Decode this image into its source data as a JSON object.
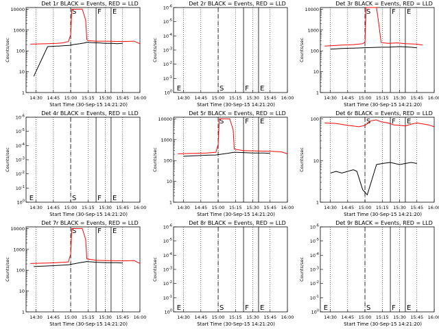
{
  "chart_data": [
    {
      "type": "line",
      "title": "Det 1r BLACK = Events, RED = LLD",
      "ylabel": "Counts/sec",
      "xlabel": "Start Time (30-Sep-15 14:21:20)",
      "x_ticks": [
        "14:30",
        "14:45",
        "15:00",
        "15:15",
        "15:30",
        "15:45",
        "16:00"
      ],
      "xlim": [
        "14:21:20",
        "16:00"
      ],
      "y_ticks": [
        "1",
        "10",
        "100",
        "1000",
        "10000"
      ],
      "ylim": [
        1,
        12000
      ],
      "yscale": "log",
      "markers": [
        {
          "label": "S",
          "x": "15:00"
        },
        {
          "label": "F",
          "x": "15:22"
        },
        {
          "label": "E",
          "x": "15:35"
        }
      ],
      "series": [
        {
          "color": "#ff0000",
          "x": [
            "14:25",
            "14:40",
            "14:48",
            "14:53",
            "14:58",
            "15:00",
            "15:01",
            "15:10",
            "15:13",
            "15:14",
            "15:15",
            "15:22",
            "15:30",
            "15:45",
            "15:55",
            "16:00"
          ],
          "y": [
            210,
            220,
            230,
            240,
            280,
            600,
            10000,
            10000,
            3000,
            350,
            310,
            290,
            290,
            280,
            290,
            220
          ]
        },
        {
          "color": "#000000",
          "x": [
            "14:28",
            "14:40",
            "14:48",
            "14:50",
            "14:53",
            "14:57",
            "15:00",
            "15:02",
            "15:08",
            "15:12",
            "15:14",
            "15:18",
            "15:25",
            "15:30",
            "15:36",
            "15:40",
            "15:45"
          ],
          "y": [
            6,
            160,
            170,
            170,
            175,
            180,
            185,
            200,
            220,
            240,
            260,
            250,
            240,
            230,
            230,
            220,
            230
          ]
        }
      ]
    },
    {
      "type": "line",
      "title": "Det 2r BLACK = Events, RED = LLD",
      "ylabel": "Counts/sec",
      "xlabel": "Start Time (30-Sep-15 14:21:20)",
      "x_ticks": [
        "14:30",
        "14:45",
        "15:00",
        "15:15",
        "15:30",
        "15:45",
        "16:00"
      ],
      "xlim": [
        "14:21:20",
        "16:00"
      ],
      "y_ticks": [
        "10^0",
        "10^-1",
        "10^-2",
        "10^-3",
        "10^-4",
        "10^-5",
        "10^-6"
      ],
      "yscale": "log",
      "markers": [
        {
          "label": "E",
          "x": "14:23"
        },
        {
          "label": "S",
          "x": "15:00"
        },
        {
          "label": "F",
          "x": "15:22"
        },
        {
          "label": "E",
          "x": "15:35"
        }
      ],
      "series": []
    },
    {
      "type": "line",
      "title": "Det 3r BLACK = Events, RED = LLD",
      "ylabel": "Counts/sec",
      "xlabel": "Start Time (30-Sep-15 14:21:20)",
      "x_ticks": [
        "14:30",
        "14:45",
        "15:00",
        "15:15",
        "15:30",
        "15:45",
        "16:00"
      ],
      "xlim": [
        "14:21:20",
        "16:00"
      ],
      "y_ticks": [
        "1",
        "10",
        "100",
        "1000",
        "10000"
      ],
      "ylim": [
        1,
        12000
      ],
      "yscale": "log",
      "markers": [
        {
          "label": "S",
          "x": "15:00"
        },
        {
          "label": "F",
          "x": "15:22"
        },
        {
          "label": "E",
          "x": "15:35"
        }
      ],
      "series": [
        {
          "color": "#ff0000",
          "x": [
            "14:25",
            "14:40",
            "14:50",
            "14:58",
            "15:00",
            "15:01",
            "15:10",
            "15:12",
            "15:14",
            "15:20",
            "15:28",
            "15:35",
            "15:45",
            "15:50"
          ],
          "y": [
            170,
            190,
            200,
            220,
            260,
            12000,
            12000,
            2000,
            250,
            230,
            240,
            220,
            210,
            190
          ]
        },
        {
          "color": "#000000",
          "x": [
            "14:30",
            "14:40",
            "14:50",
            "14:58",
            "15:14",
            "15:20",
            "15:30",
            "15:40",
            "15:45"
          ],
          "y": [
            120,
            130,
            135,
            140,
            150,
            150,
            160,
            150,
            140
          ]
        }
      ]
    },
    {
      "type": "line",
      "title": "Det 4r BLACK = Events, RED = LLD",
      "ylabel": "Counts/sec",
      "xlabel": "Start Time (30-Sep-15 14:21:20)",
      "x_ticks": [
        "14:30",
        "14:45",
        "15:00",
        "15:15",
        "15:30",
        "15:45",
        "16:00"
      ],
      "xlim": [
        "14:21:20",
        "16:00"
      ],
      "y_ticks": [
        "10^0",
        "10^-1",
        "10^-2",
        "10^-3",
        "10^-4",
        "10^-5",
        "10^-6"
      ],
      "yscale": "log",
      "markers": [
        {
          "label": "E",
          "x": "14:23"
        },
        {
          "label": "S",
          "x": "15:00"
        },
        {
          "label": "F",
          "x": "15:22"
        },
        {
          "label": "E",
          "x": "15:35"
        }
      ],
      "series": []
    },
    {
      "type": "line",
      "title": "Det 5r BLACK = Events, RED = LLD",
      "ylabel": "Counts/sec",
      "xlabel": "Start Time (30-Sep-15 14:21:20)",
      "x_ticks": [
        "14:30",
        "14:45",
        "15:00",
        "15:15",
        "15:30",
        "15:45",
        "16:00"
      ],
      "xlim": [
        "14:21:20",
        "16:00"
      ],
      "y_ticks": [
        "1",
        "10",
        "100",
        "1000",
        "10000"
      ],
      "ylim": [
        1,
        12000
      ],
      "yscale": "log",
      "markers": [
        {
          "label": "S",
          "x": "15:00"
        },
        {
          "label": "F",
          "x": "15:22"
        },
        {
          "label": "E",
          "x": "15:35"
        }
      ],
      "series": [
        {
          "color": "#ff0000",
          "x": [
            "14:25",
            "14:40",
            "14:50",
            "14:58",
            "15:00",
            "15:01",
            "15:10",
            "15:13",
            "15:14",
            "15:22",
            "15:30",
            "15:45",
            "15:55",
            "16:00"
          ],
          "y": [
            210,
            220,
            230,
            250,
            600,
            10000,
            10000,
            3000,
            350,
            300,
            290,
            280,
            260,
            210
          ]
        },
        {
          "color": "#000000",
          "x": [
            "14:30",
            "14:40",
            "14:50",
            "14:58",
            "15:02",
            "15:08",
            "15:14",
            "15:22",
            "15:30",
            "15:40",
            "15:45"
          ],
          "y": [
            160,
            170,
            180,
            185,
            200,
            220,
            250,
            240,
            230,
            230,
            220
          ]
        }
      ]
    },
    {
      "type": "line",
      "title": "Det 6r BLACK = Events, RED = LLD",
      "ylabel": "Counts/sec",
      "xlabel": "Start Time (30-Sep-15 14:21:20)",
      "x_ticks": [
        "14:30",
        "14:45",
        "15:00",
        "15:15",
        "15:30",
        "15:45",
        "16:00"
      ],
      "xlim": [
        "14:21:20",
        "16:00"
      ],
      "y_ticks": [
        "1",
        "10",
        "100"
      ],
      "ylim": [
        1,
        110
      ],
      "yscale": "log",
      "markers": [
        {
          "label": "S",
          "x": "15:00"
        },
        {
          "label": "F",
          "x": "15:22"
        },
        {
          "label": "E",
          "x": "15:35"
        }
      ],
      "series": [
        {
          "color": "#ff0000",
          "x": [
            "14:25",
            "14:35",
            "14:45",
            "14:55",
            "15:00",
            "15:05",
            "15:10",
            "15:14",
            "15:20",
            "15:25",
            "15:30",
            "15:35",
            "15:40",
            "15:45",
            "15:55",
            "16:00"
          ],
          "y": [
            80,
            78,
            70,
            65,
            70,
            90,
            95,
            85,
            80,
            72,
            70,
            68,
            75,
            80,
            72,
            65
          ]
        },
        {
          "color": "#000000",
          "x": [
            "14:30",
            "14:35",
            "14:40",
            "14:45",
            "14:50",
            "14:53",
            "14:58",
            "15:02",
            "15:10",
            "15:15",
            "15:22",
            "15:30",
            "15:35",
            "15:40",
            "15:45"
          ],
          "y": [
            5,
            5.5,
            5,
            5.5,
            6,
            5.5,
            2,
            1.5,
            8,
            8.5,
            9,
            8,
            8.5,
            9,
            8.5
          ]
        }
      ]
    },
    {
      "type": "line",
      "title": "Det 7r BLACK = Events, RED = LLD",
      "ylabel": "Counts/sec",
      "xlabel": "Start Time (30-Sep-15 14:21:20)",
      "x_ticks": [
        "14:30",
        "14:45",
        "15:00",
        "15:15",
        "15:30",
        "15:45",
        "16:00"
      ],
      "xlim": [
        "14:21:20",
        "16:00"
      ],
      "y_ticks": [
        "1",
        "10",
        "100",
        "1000",
        "10000"
      ],
      "ylim": [
        1,
        12000
      ],
      "yscale": "log",
      "markers": [
        {
          "label": "S",
          "x": "15:00"
        },
        {
          "label": "F",
          "x": "15:22"
        },
        {
          "label": "E",
          "x": "15:35"
        }
      ],
      "series": [
        {
          "color": "#ff0000",
          "x": [
            "14:25",
            "14:40",
            "14:48",
            "14:58",
            "15:00",
            "15:01",
            "15:10",
            "15:13",
            "15:14",
            "15:22",
            "15:30",
            "15:45",
            "15:55",
            "16:00"
          ],
          "y": [
            210,
            220,
            230,
            250,
            600,
            10000,
            10000,
            3000,
            350,
            300,
            290,
            280,
            290,
            210
          ]
        },
        {
          "color": "#000000",
          "x": [
            "14:28",
            "14:40",
            "14:48",
            "14:58",
            "15:02",
            "15:08",
            "15:14",
            "15:22",
            "15:30",
            "15:40",
            "15:45"
          ],
          "y": [
            150,
            160,
            170,
            180,
            200,
            230,
            260,
            240,
            230,
            230,
            220
          ]
        }
      ]
    },
    {
      "type": "line",
      "title": "Det 8r BLACK = Events, RED = LLD",
      "ylabel": "Counts/sec",
      "xlabel": "Start Time (30-Sep-15 14:21:20)",
      "x_ticks": [
        "14:30",
        "14:45",
        "15:00",
        "15:15",
        "15:30",
        "15:45",
        "16:00"
      ],
      "xlim": [
        "14:21:20",
        "16:00"
      ],
      "y_ticks": [
        "10^0",
        "10^-1",
        "10^-2",
        "10^-3",
        "10^-4",
        "10^-5",
        "10^-6"
      ],
      "yscale": "log",
      "markers": [
        {
          "label": "E",
          "x": "14:23"
        },
        {
          "label": "S",
          "x": "15:00"
        },
        {
          "label": "F",
          "x": "15:22"
        },
        {
          "label": "E",
          "x": "15:35"
        }
      ],
      "series": []
    },
    {
      "type": "line",
      "title": "Det 9r BLACK = Events, RED = LLD",
      "ylabel": "Counts/sec",
      "xlabel": "Start Time (30-Sep-15 14:21:20)",
      "x_ticks": [
        "14:30",
        "14:45",
        "15:00",
        "15:15",
        "15:30",
        "15:45",
        "16:00"
      ],
      "xlim": [
        "14:21:20",
        "16:00"
      ],
      "y_ticks": [
        "10^0",
        "10^-1",
        "10^-2",
        "10^-3",
        "10^-4",
        "10^-5",
        "10^-6"
      ],
      "yscale": "log",
      "markers": [
        {
          "label": "E",
          "x": "14:23"
        },
        {
          "label": "S",
          "x": "15:00"
        },
        {
          "label": "F",
          "x": "15:22"
        },
        {
          "label": "E",
          "x": "15:35"
        }
      ],
      "series": []
    }
  ]
}
